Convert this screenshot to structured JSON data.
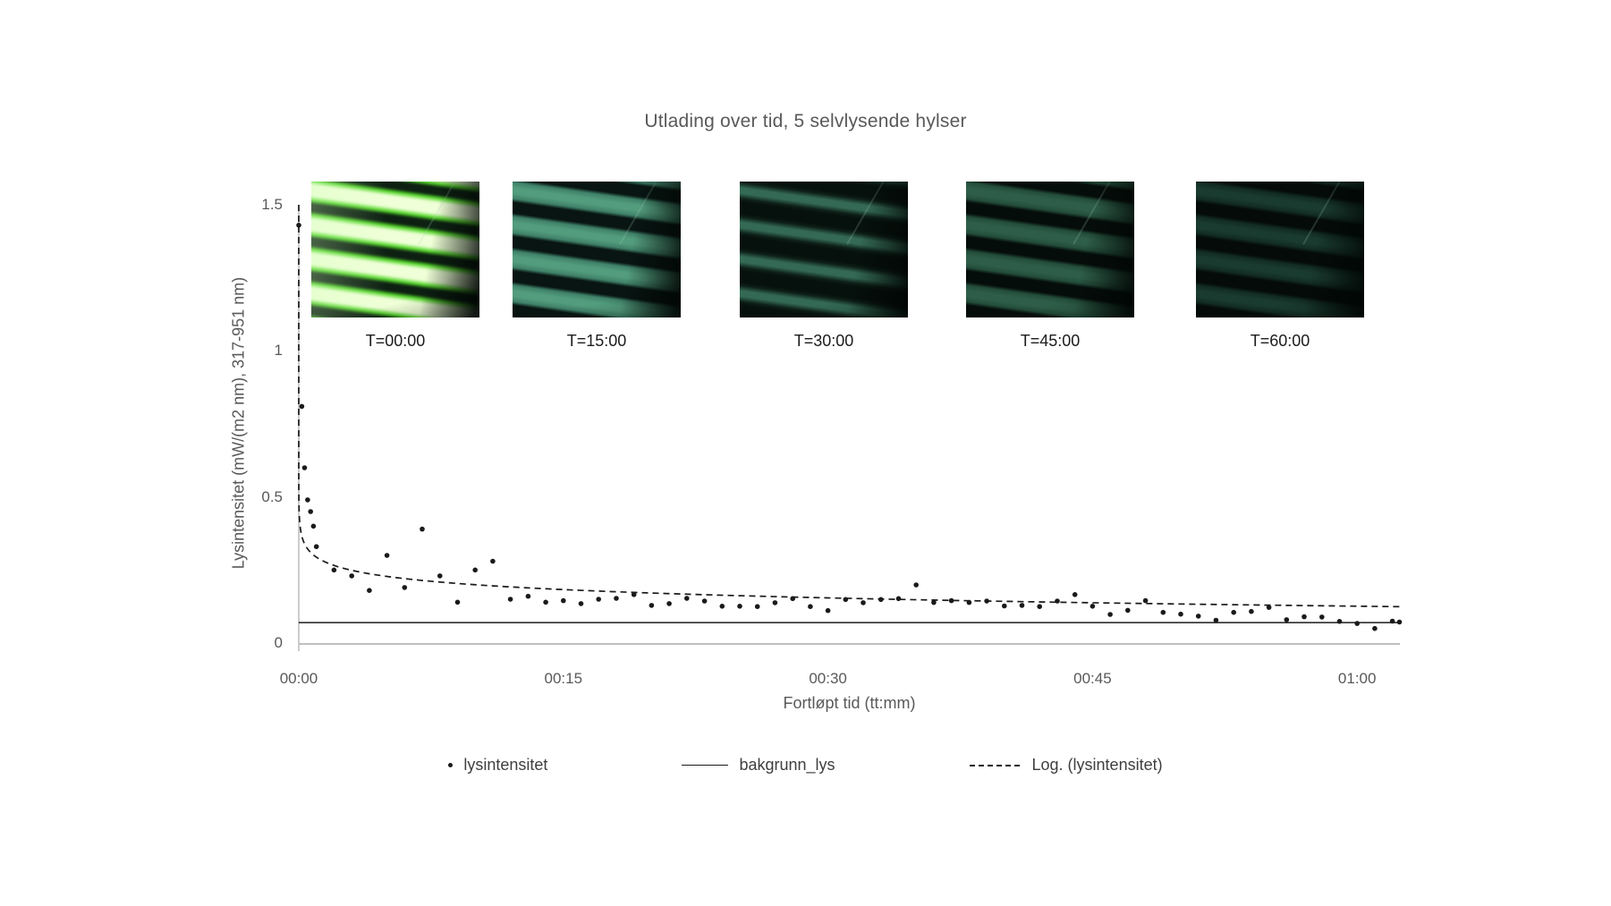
{
  "chart": {
    "title": "Utlading over tid, 5 selvlysende hylser",
    "legend": [
      {
        "label": "lysintensitet",
        "marker": "dot"
      },
      {
        "label": "bakgrunn_lys",
        "marker": "solid-line"
      },
      {
        "label": "Log. (lysintensitet)",
        "marker": "dashed-line"
      }
    ],
    "colors": {
      "text_grey": "#595959",
      "axis_grey": "#bfbfbf",
      "series_black": "#1a1a1a"
    }
  },
  "photos": [
    {
      "label": "T=00:00",
      "bg": "#0d2012",
      "strip": "#57d52e",
      "core": "#efffd9",
      "glow": true
    },
    {
      "label": "T=15:00",
      "bg": "#081512",
      "strip": "#3f8168",
      "core": "#539c7e",
      "glow": false
    },
    {
      "label": "T=30:00",
      "bg": "#06100c",
      "strip": "#28584635",
      "core": "#346a55",
      "glow": false
    },
    {
      "label": "T=45:00",
      "bg": "#050d0a",
      "strip": "#234d3b",
      "core": "#2e5e49",
      "glow": false
    },
    {
      "label": "T=60:00",
      "bg": "#040b08",
      "strip": "#122c23",
      "core": "#1a3b2f",
      "glow": false
    }
  ],
  "chart_data": {
    "type": "scatter",
    "title": "Utlading over tid, 5 selvlysende hylser",
    "xlabel": "Fortløpt tid (tt:mm)",
    "ylabel": "Lysintensitet (mW/(m2 nm), 317-951 nm)",
    "x_unit": "minutes",
    "xlim": [
      0,
      62.5
    ],
    "ylim": [
      0,
      1.5
    ],
    "grid": false,
    "legend_position": "bottom",
    "x_ticks": [
      {
        "t": 0,
        "label": "00:00"
      },
      {
        "t": 15,
        "label": "00:15"
      },
      {
        "t": 30,
        "label": "00:30"
      },
      {
        "t": 45,
        "label": "00:45"
      },
      {
        "t": 60,
        "label": "01:00"
      }
    ],
    "y_ticks": [
      {
        "v": 1.5,
        "label": "1.5"
      },
      {
        "v": 1,
        "label": "1"
      },
      {
        "v": 0.5,
        "label": "0.5"
      },
      {
        "v": 0,
        "label": "0"
      }
    ],
    "series": [
      {
        "name": "lysintensitet",
        "type": "scatter",
        "color": "#1a1a1a",
        "points": [
          [
            0,
            1.43
          ],
          [
            0.17,
            0.81
          ],
          [
            0.33,
            0.6
          ],
          [
            0.5,
            0.49
          ],
          [
            0.67,
            0.45
          ],
          [
            0.83,
            0.4
          ],
          [
            1,
            0.33
          ],
          [
            2,
            0.25
          ],
          [
            3,
            0.23
          ],
          [
            4,
            0.18
          ],
          [
            5,
            0.3
          ],
          [
            6,
            0.19
          ],
          [
            7,
            0.39
          ],
          [
            8,
            0.23
          ],
          [
            9,
            0.14
          ],
          [
            10,
            0.25
          ],
          [
            11,
            0.28
          ],
          [
            12,
            0.15
          ],
          [
            13,
            0.16
          ],
          [
            14,
            0.14
          ],
          [
            15,
            0.145
          ],
          [
            16,
            0.135
          ],
          [
            17,
            0.15
          ],
          [
            18,
            0.153
          ],
          [
            19,
            0.166
          ],
          [
            20,
            0.129
          ],
          [
            21,
            0.135
          ],
          [
            22,
            0.153
          ],
          [
            23,
            0.144
          ],
          [
            24,
            0.126
          ],
          [
            25,
            0.126
          ],
          [
            26,
            0.125
          ],
          [
            27,
            0.138
          ],
          [
            28,
            0.152
          ],
          [
            29,
            0.125
          ],
          [
            30,
            0.111
          ],
          [
            31,
            0.149
          ],
          [
            32,
            0.138
          ],
          [
            33,
            0.149
          ],
          [
            34,
            0.152
          ],
          [
            35,
            0.199
          ],
          [
            36,
            0.139
          ],
          [
            37,
            0.145
          ],
          [
            38,
            0.139
          ],
          [
            39,
            0.144
          ],
          [
            40,
            0.127
          ],
          [
            41,
            0.129
          ],
          [
            42,
            0.125
          ],
          [
            43,
            0.144
          ],
          [
            44,
            0.166
          ],
          [
            45,
            0.126
          ],
          [
            46,
            0.098
          ],
          [
            47,
            0.112
          ],
          [
            48,
            0.145
          ],
          [
            49,
            0.105
          ],
          [
            50,
            0.099
          ],
          [
            51,
            0.092
          ],
          [
            52,
            0.078
          ],
          [
            53,
            0.105
          ],
          [
            54,
            0.108
          ],
          [
            55,
            0.122
          ],
          [
            56,
            0.08
          ],
          [
            57,
            0.09
          ],
          [
            58,
            0.089
          ],
          [
            59,
            0.074
          ],
          [
            60,
            0.067
          ],
          [
            61,
            0.05
          ],
          [
            62,
            0.075
          ],
          [
            62.4,
            0.072
          ]
        ]
      },
      {
        "name": "bakgrunn_lys",
        "type": "hline",
        "color": "#1a1a1a",
        "value": 0.07
      },
      {
        "name": "Log. (lysintensitet)",
        "type": "log_trendline",
        "style": "dashed",
        "color": "#1a1a1a",
        "a": -0.041,
        "b": 0.294,
        "equation": "y = -0.041*ln(t) + 0.294"
      }
    ]
  }
}
